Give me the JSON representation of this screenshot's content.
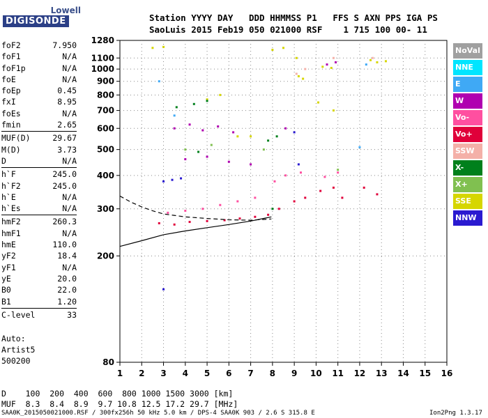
{
  "logo": {
    "top": "Lowell",
    "bottom": "DIGISONDE"
  },
  "header": {
    "line1": "Station YYYY DAY   DDD HHMMSS P1   FFS S AXN PPS IGA PS",
    "line2": "SaoLuis 2015 Feb19 050 021000 RSF    1 715 100 00- 11"
  },
  "params": {
    "group1": [
      [
        "foF2",
        "7.950"
      ],
      [
        "foF1",
        "N/A"
      ],
      [
        "foF1p",
        "N/A"
      ],
      [
        "foE",
        "N/A"
      ],
      [
        "foEp",
        "0.45"
      ],
      [
        "fxI",
        "8.95"
      ],
      [
        "foEs",
        "N/A"
      ],
      [
        "fmin",
        "2.65"
      ]
    ],
    "group2": [
      [
        "MUF(D)",
        "29.67"
      ],
      [
        "M(D)",
        "3.73"
      ],
      [
        "D",
        "N/A"
      ]
    ],
    "group3": [
      [
        "h`F",
        "245.0"
      ],
      [
        "h`F2",
        "245.0"
      ],
      [
        "h`E",
        "N/A"
      ],
      [
        "h`Es",
        "N/A"
      ]
    ],
    "group4": [
      [
        "hmF2",
        "260.3"
      ],
      [
        "hmF1",
        "N/A"
      ],
      [
        "hmE",
        "110.0"
      ],
      [
        "yF2",
        "18.4"
      ],
      [
        "yF1",
        "N/A"
      ],
      [
        "yE",
        "20.0"
      ],
      [
        "B0",
        "22.0"
      ],
      [
        "B1",
        "1.20"
      ]
    ],
    "group5": [
      [
        "C-level",
        "33"
      ]
    ]
  },
  "autoscale": {
    "line1": "Auto:",
    "line2": "Artist5",
    "line3": "500200"
  },
  "footer": {
    "d_row": "D    100  200  400  600  800 1000 1500 3000 [km]",
    "muf_row": "MUF  8.3  8.4  8.9  9.7 10.8 12.5 17.2 29.7 [MHz]",
    "file_row": "SAA0K_2015050021000.RSF / 300fx256h 50 kHz 5.0 km / DPS-4 SAA0K 903 / 2.6 S 315.8 E",
    "version": "Ion2Png 1.3.17"
  },
  "legend": [
    {
      "label": "NoVal",
      "color": "#a0a0a0"
    },
    {
      "label": "NNE",
      "color": "#00e5ff"
    },
    {
      "label": "E",
      "color": "#3fa9f5"
    },
    {
      "label": "W",
      "color": "#b000b0"
    },
    {
      "label": "Vo-",
      "color": "#ff4fa0"
    },
    {
      "label": "Vo+",
      "color": "#e0003a"
    },
    {
      "label": "SSW",
      "color": "#f4b0a8"
    },
    {
      "label": "X-",
      "color": "#00801c"
    },
    {
      "label": "X+",
      "color": "#80c050"
    },
    {
      "label": "SSE",
      "color": "#d6d600"
    },
    {
      "label": "NNW",
      "color": "#2a1ad0"
    }
  ],
  "chart_data": {
    "type": "scatter",
    "xlabel": "",
    "ylabel": "",
    "xlim": [
      1,
      16
    ],
    "ylim": [
      80,
      1280
    ],
    "y_scale": "log",
    "grid": true,
    "x_ticks": [
      1,
      2,
      3,
      4,
      5,
      6,
      7,
      8,
      9,
      10,
      11,
      12,
      13,
      14,
      15,
      16
    ],
    "y_ticks": [
      80,
      200,
      300,
      400,
      500,
      600,
      700,
      800,
      900,
      1000,
      1100,
      1280
    ],
    "series": [
      {
        "color": "#e0003a",
        "points": [
          [
            2.8,
            265
          ],
          [
            3.5,
            262
          ],
          [
            4.2,
            268
          ],
          [
            5.0,
            270
          ],
          [
            5.8,
            272
          ],
          [
            6.5,
            276
          ],
          [
            7.2,
            280
          ],
          [
            7.8,
            285
          ],
          [
            8.3,
            300
          ],
          [
            9.0,
            320
          ],
          [
            9.5,
            330
          ],
          [
            10.2,
            350
          ],
          [
            10.8,
            360
          ],
          [
            11.2,
            330
          ],
          [
            12.2,
            360
          ],
          [
            12.8,
            340
          ]
        ]
      },
      {
        "color": "#ff4fa0",
        "points": [
          [
            3.2,
            290
          ],
          [
            4.0,
            295
          ],
          [
            4.8,
            300
          ],
          [
            5.6,
            310
          ],
          [
            6.4,
            320
          ],
          [
            7.2,
            330
          ],
          [
            8.1,
            380
          ],
          [
            8.6,
            400
          ],
          [
            9.3,
            410
          ],
          [
            10.4,
            395
          ],
          [
            11.0,
            410
          ]
        ]
      },
      {
        "color": "#b000b0",
        "points": [
          [
            3.5,
            600
          ],
          [
            4.2,
            620
          ],
          [
            4.8,
            590
          ],
          [
            5.5,
            610
          ],
          [
            6.2,
            580
          ],
          [
            4.0,
            460
          ],
          [
            5.0,
            470
          ],
          [
            6.0,
            450
          ],
          [
            7.0,
            440
          ],
          [
            10.5,
            1040
          ],
          [
            10.9,
            1060
          ],
          [
            8.6,
            600
          ]
        ]
      },
      {
        "color": "#2a1ad0",
        "points": [
          [
            3.0,
            380
          ],
          [
            3.4,
            385
          ],
          [
            3.8,
            390
          ],
          [
            9.2,
            440
          ],
          [
            9.0,
            580
          ],
          [
            3.0,
            150
          ]
        ]
      },
      {
        "color": "#d6d600",
        "points": [
          [
            2.5,
            1200
          ],
          [
            3.0,
            1210
          ],
          [
            8.0,
            1180
          ],
          [
            8.5,
            1200
          ],
          [
            9.1,
            1100
          ],
          [
            9.2,
            940
          ],
          [
            9.4,
            920
          ],
          [
            10.1,
            750
          ],
          [
            10.8,
            700
          ],
          [
            12.5,
            1080
          ],
          [
            12.8,
            1060
          ],
          [
            13.2,
            1070
          ],
          [
            10.3,
            1020
          ],
          [
            10.7,
            1010
          ],
          [
            6.4,
            560
          ],
          [
            7.0,
            560
          ],
          [
            5.0,
            770
          ],
          [
            5.6,
            800
          ]
        ]
      },
      {
        "color": "#00801c",
        "points": [
          [
            3.6,
            720
          ],
          [
            4.4,
            740
          ],
          [
            5.0,
            760
          ],
          [
            7.8,
            540
          ],
          [
            8.2,
            560
          ],
          [
            4.6,
            490
          ],
          [
            8.0,
            300
          ]
        ]
      },
      {
        "color": "#80c050",
        "points": [
          [
            4.0,
            500
          ],
          [
            5.2,
            520
          ],
          [
            7.6,
            500
          ],
          [
            11.0,
            420
          ]
        ]
      },
      {
        "color": "#3fa9f5",
        "points": [
          [
            2.8,
            900
          ],
          [
            3.5,
            670
          ],
          [
            12.0,
            510
          ],
          [
            12.3,
            1040
          ]
        ]
      },
      {
        "color": "#f4b0a8",
        "points": [
          [
            9.1,
            960
          ],
          [
            9.5,
            1000
          ],
          [
            10.8,
            1100
          ],
          [
            12.6,
            1100
          ]
        ]
      }
    ],
    "curves": [
      {
        "style": "solid",
        "points": [
          [
            1,
            217
          ],
          [
            2,
            228
          ],
          [
            3,
            240
          ],
          [
            4,
            248
          ],
          [
            5,
            255
          ],
          [
            6,
            262
          ],
          [
            7,
            270
          ],
          [
            7.95,
            280
          ]
        ]
      },
      {
        "style": "dashed",
        "points": [
          [
            1,
            335
          ],
          [
            1.5,
            318
          ],
          [
            2,
            305
          ],
          [
            2.5,
            295
          ],
          [
            3,
            287
          ],
          [
            4,
            280
          ],
          [
            5,
            276
          ],
          [
            6,
            273
          ],
          [
            7,
            272
          ],
          [
            7.95,
            275
          ]
        ]
      }
    ]
  }
}
